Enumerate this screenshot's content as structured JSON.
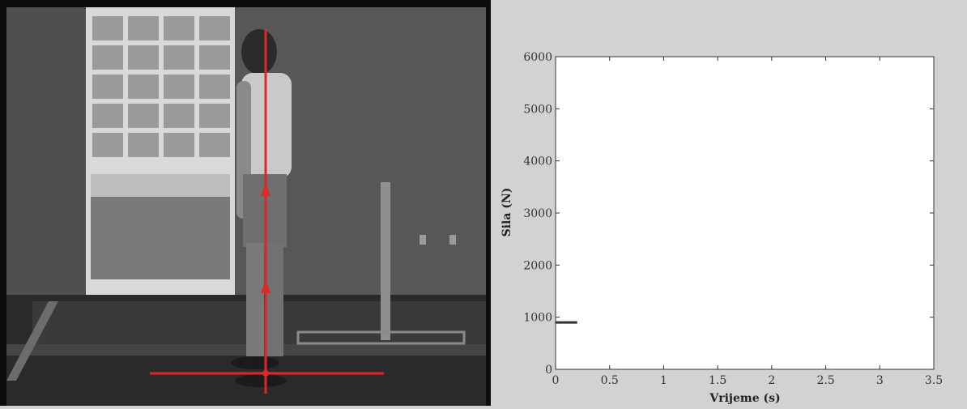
{
  "video": {
    "colors": {
      "force_overlay": "#e0262a"
    }
  },
  "chart_data": {
    "type": "line",
    "xlabel": "Vrijeme (s)",
    "ylabel": "Sila (N)",
    "xlim": [
      0,
      3.5
    ],
    "ylim": [
      0,
      6000
    ],
    "xticks": [
      0,
      0.5,
      1,
      1.5,
      2,
      2.5,
      3,
      3.5
    ],
    "xtick_labels": [
      "0",
      "0.5",
      "1",
      "1.5",
      "2",
      "2.5",
      "3",
      "3.5"
    ],
    "yticks": [
      0,
      1000,
      2000,
      3000,
      4000,
      5000,
      6000
    ],
    "ytick_labels": [
      "0",
      "1000",
      "2000",
      "3000",
      "4000",
      "5000",
      "6000"
    ],
    "grid": false,
    "series": [
      {
        "color": "#333333",
        "x": [
          0,
          0.2
        ],
        "y": [
          900,
          900
        ]
      }
    ]
  }
}
